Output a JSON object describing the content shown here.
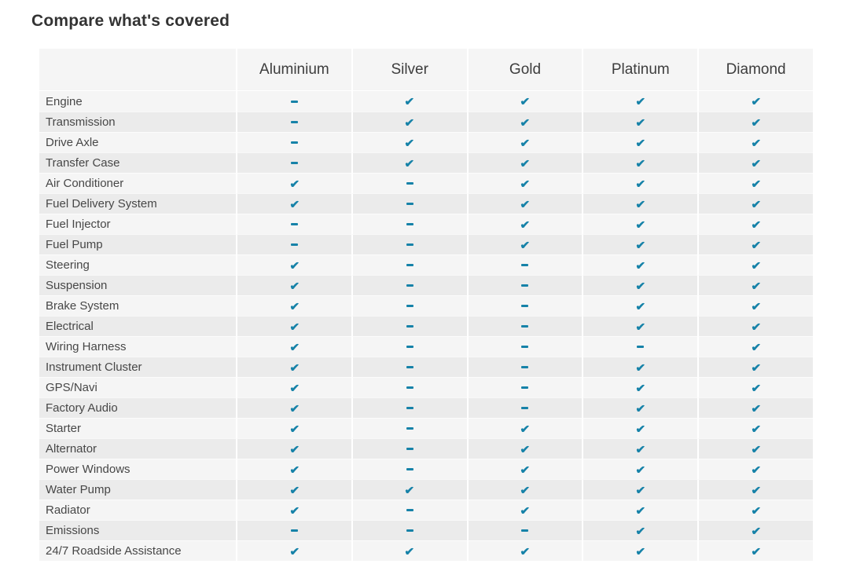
{
  "title": "Compare what's covered",
  "colors": {
    "accent": "#1682a8",
    "header_bg": "#f5f5f5",
    "row_odd_bg": "#f5f5f5",
    "row_even_bg": "#ebebeb",
    "title_text": "#333333",
    "label_text": "#474747"
  },
  "icons": {
    "check": "check-icon",
    "dash": "dash-icon"
  },
  "table": {
    "corner_label": "",
    "columns": [
      "Aluminium",
      "Silver",
      "Gold",
      "Platinum",
      "Diamond"
    ],
    "rows": [
      {
        "label": "Engine",
        "values": [
          "dash",
          "check",
          "check",
          "check",
          "check"
        ]
      },
      {
        "label": "Transmission",
        "values": [
          "dash",
          "check",
          "check",
          "check",
          "check"
        ]
      },
      {
        "label": "Drive Axle",
        "values": [
          "dash",
          "check",
          "check",
          "check",
          "check"
        ]
      },
      {
        "label": "Transfer Case",
        "values": [
          "dash",
          "check",
          "check",
          "check",
          "check"
        ]
      },
      {
        "label": "Air Conditioner",
        "values": [
          "check",
          "dash",
          "check",
          "check",
          "check"
        ]
      },
      {
        "label": "Fuel Delivery System",
        "values": [
          "check",
          "dash",
          "check",
          "check",
          "check"
        ]
      },
      {
        "label": "Fuel Injector",
        "values": [
          "dash",
          "dash",
          "check",
          "check",
          "check"
        ]
      },
      {
        "label": "Fuel Pump",
        "values": [
          "dash",
          "dash",
          "check",
          "check",
          "check"
        ]
      },
      {
        "label": "Steering",
        "values": [
          "check",
          "dash",
          "dash",
          "check",
          "check"
        ]
      },
      {
        "label": "Suspension",
        "values": [
          "check",
          "dash",
          "dash",
          "check",
          "check"
        ]
      },
      {
        "label": "Brake System",
        "values": [
          "check",
          "dash",
          "dash",
          "check",
          "check"
        ]
      },
      {
        "label": "Electrical",
        "values": [
          "check",
          "dash",
          "dash",
          "check",
          "check"
        ]
      },
      {
        "label": "Wiring Harness",
        "values": [
          "check",
          "dash",
          "dash",
          "dash",
          "check"
        ]
      },
      {
        "label": "Instrument Cluster",
        "values": [
          "check",
          "dash",
          "dash",
          "check",
          "check"
        ]
      },
      {
        "label": "GPS/Navi",
        "values": [
          "check",
          "dash",
          "dash",
          "check",
          "check"
        ]
      },
      {
        "label": "Factory Audio",
        "values": [
          "check",
          "dash",
          "dash",
          "check",
          "check"
        ]
      },
      {
        "label": "Starter",
        "values": [
          "check",
          "dash",
          "check",
          "check",
          "check"
        ]
      },
      {
        "label": "Alternator",
        "values": [
          "check",
          "dash",
          "check",
          "check",
          "check"
        ]
      },
      {
        "label": "Power Windows",
        "values": [
          "check",
          "dash",
          "check",
          "check",
          "check"
        ]
      },
      {
        "label": "Water Pump",
        "values": [
          "check",
          "check",
          "check",
          "check",
          "check"
        ]
      },
      {
        "label": "Radiator",
        "values": [
          "check",
          "dash",
          "check",
          "check",
          "check"
        ]
      },
      {
        "label": "Emissions",
        "values": [
          "dash",
          "dash",
          "dash",
          "check",
          "check"
        ]
      },
      {
        "label": "24/7 Roadside Assistance",
        "values": [
          "check",
          "check",
          "check",
          "check",
          "check"
        ]
      }
    ]
  }
}
